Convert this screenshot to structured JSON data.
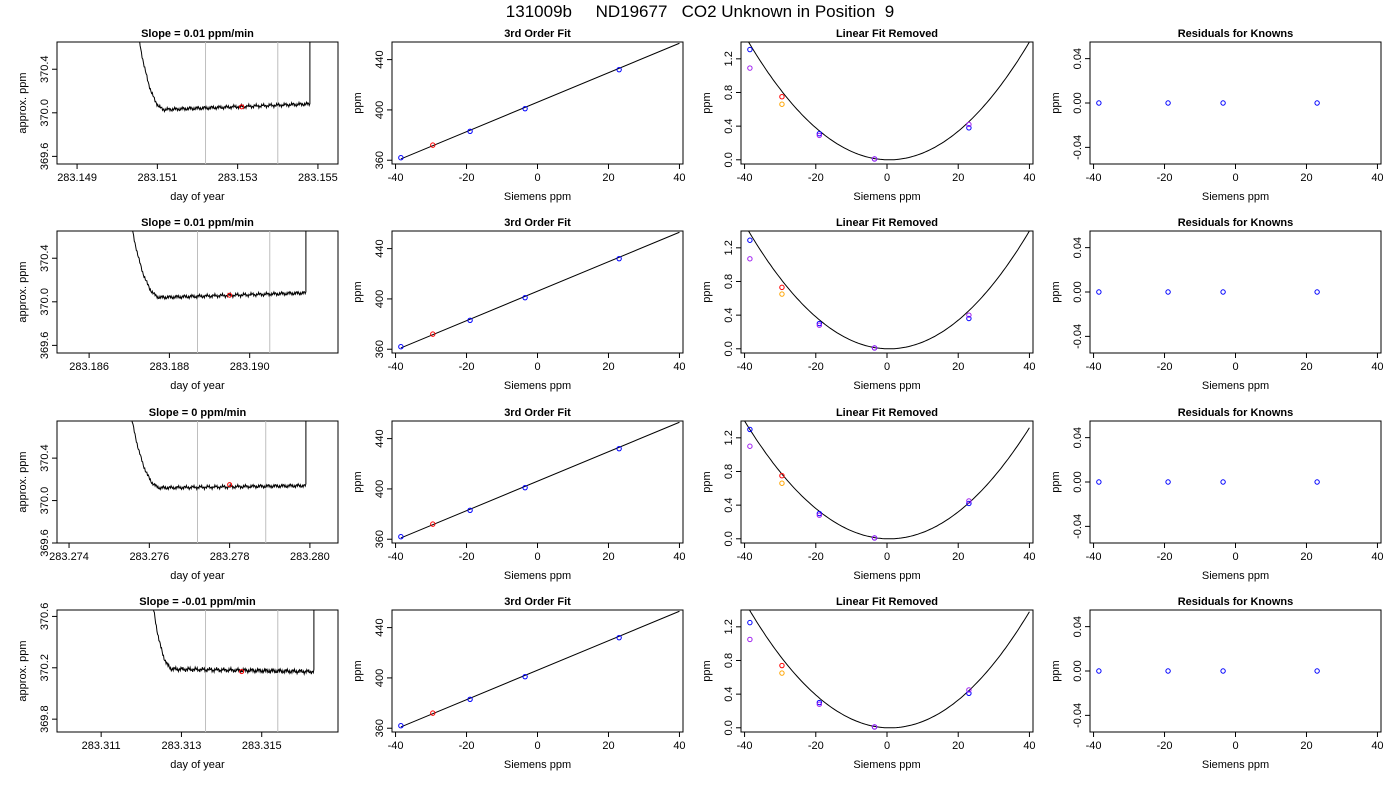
{
  "title": "131009b     ND19677   CO2 Unknown in Position  9",
  "colors": {
    "line": "#000000",
    "highlight": "#ff0000",
    "orange": "#ffa500",
    "blue": "#0000ff",
    "magenta": "#a020f0",
    "cursor": "#bebebe"
  },
  "chart_data": [
    {
      "type": "line",
      "panel": "trace",
      "row": 1,
      "title": "Slope =  0.01  ppm/min",
      "xlabel": "day of year",
      "ylabel": "approx. ppm",
      "xlim": [
        283.1485,
        283.1555
      ],
      "ylim": [
        369.53,
        370.65
      ],
      "xticks": [
        283.149,
        283.151,
        283.153,
        283.155
      ],
      "xtick_labels": [
        "283.149",
        "283.151",
        "283.153",
        "283.155"
      ],
      "yticks": [
        369.6,
        370.0,
        370.4
      ],
      "ytick_labels": [
        "369.6",
        "370.0",
        "370.4"
      ],
      "vlines": [
        283.1522,
        283.154
      ],
      "highlight_point": {
        "x": 283.1531,
        "y": 370.055
      },
      "trace": {
        "x_start": 283.1504,
        "x_plateau": 283.1512,
        "x_end": 283.1547,
        "x_rise_end": 283.1548,
        "level": 370.03,
        "end_level": 370.08
      }
    },
    {
      "type": "line",
      "panel": "trace",
      "row": 2,
      "title": "Slope =  0.01  ppm/min",
      "xlabel": "day of year",
      "ylabel": "approx. ppm",
      "xlim": [
        283.1852,
        283.1922
      ],
      "ylim": [
        369.53,
        370.65
      ],
      "xticks": [
        283.186,
        283.188,
        283.19
      ],
      "xtick_labels": [
        "283.186",
        "283.188",
        "283.190"
      ],
      "yticks": [
        369.6,
        370.0,
        370.4
      ],
      "ytick_labels": [
        "369.6",
        "370.0",
        "370.4"
      ],
      "vlines": [
        283.1887,
        283.1905
      ],
      "highlight_point": {
        "x": 283.1895,
        "y": 370.06
      },
      "trace": {
        "x_start": 283.1869,
        "x_plateau": 283.1878,
        "x_end": 283.1913,
        "x_rise_end": 283.1914,
        "level": 370.04,
        "end_level": 370.08
      }
    },
    {
      "type": "line",
      "panel": "trace",
      "row": 3,
      "title": "Slope =  0  ppm/min",
      "xlabel": "day of year",
      "ylabel": "approx. ppm",
      "xlim": [
        283.2737,
        283.2807
      ],
      "ylim": [
        369.6,
        370.75
      ],
      "xticks": [
        283.274,
        283.276,
        283.278,
        283.28
      ],
      "xtick_labels": [
        "283.274",
        "283.276",
        "283.278",
        "283.280"
      ],
      "yticks": [
        369.6,
        370.0,
        370.4
      ],
      "ytick_labels": [
        "369.6",
        "370.0",
        "370.4"
      ],
      "vlines": [
        283.2772,
        283.2789
      ],
      "highlight_point": {
        "x": 283.278,
        "y": 370.15
      },
      "trace": {
        "x_start": 283.2754,
        "x_plateau": 283.2763,
        "x_end": 283.2798,
        "x_rise_end": 283.2799,
        "level": 370.12,
        "end_level": 370.14
      }
    },
    {
      "type": "line",
      "panel": "trace",
      "row": 4,
      "title": "Slope =  -0.01  ppm/min",
      "xlabel": "day of year",
      "ylabel": "approx. ppm",
      "xlim": [
        283.3099,
        283.3169
      ],
      "ylim": [
        369.7,
        370.65
      ],
      "xticks": [
        283.311,
        283.313,
        283.315
      ],
      "xtick_labels": [
        "283.311",
        "283.313",
        "283.315"
      ],
      "yticks": [
        369.8,
        370.2,
        370.6
      ],
      "ytick_labels": [
        "369.8",
        "370.2",
        "370.6"
      ],
      "vlines": [
        283.3136,
        283.3154
      ],
      "highlight_point": {
        "x": 283.3145,
        "y": 370.17
      },
      "trace": {
        "x_start": 283.3121,
        "x_plateau": 283.3128,
        "x_end": 283.3162,
        "x_rise_end": 283.3163,
        "level": 370.19,
        "end_level": 370.17
      }
    },
    {
      "type": "scatter",
      "panel": "fit",
      "row": 1,
      "title": "3rd Order Fit",
      "xlabel": "Siemens ppm",
      "ylabel": "ppm",
      "xlim": [
        -41,
        41
      ],
      "ylim": [
        357,
        454
      ],
      "xticks": [
        -40,
        -20,
        0,
        20,
        40
      ],
      "xtick_labels": [
        "-40",
        "-20",
        "0",
        "20",
        "40"
      ],
      "yticks": [
        360,
        400,
        440
      ],
      "ytick_labels": [
        "360",
        "400",
        "440"
      ],
      "line": {
        "x": [
          -38.5,
          40
        ],
        "y": [
          361,
          453
        ]
      },
      "points": [
        {
          "x": -38.5,
          "y": 362,
          "color": "blue"
        },
        {
          "x": -29.5,
          "y": 372,
          "color": "red"
        },
        {
          "x": -19,
          "y": 383,
          "color": "blue"
        },
        {
          "x": -3.5,
          "y": 401,
          "color": "blue"
        },
        {
          "x": 23,
          "y": 432,
          "color": "blue"
        }
      ]
    },
    {
      "type": "scatter",
      "panel": "fit",
      "row": 2,
      "title": "3rd Order Fit",
      "xlabel": "Siemens ppm",
      "ylabel": "ppm",
      "xlim": [
        -41,
        41
      ],
      "ylim": [
        357,
        454
      ],
      "xticks": [
        -40,
        -20,
        0,
        20,
        40
      ],
      "xtick_labels": [
        "-40",
        "-20",
        "0",
        "20",
        "40"
      ],
      "yticks": [
        360,
        400,
        440
      ],
      "ytick_labels": [
        "360",
        "400",
        "440"
      ],
      "line": {
        "x": [
          -38.5,
          40
        ],
        "y": [
          361,
          453
        ]
      },
      "points": [
        {
          "x": -38.5,
          "y": 362,
          "color": "blue"
        },
        {
          "x": -29.5,
          "y": 372,
          "color": "red"
        },
        {
          "x": -19,
          "y": 383,
          "color": "blue"
        },
        {
          "x": -3.5,
          "y": 401,
          "color": "blue"
        },
        {
          "x": 23,
          "y": 432,
          "color": "blue"
        }
      ]
    },
    {
      "type": "scatter",
      "panel": "fit",
      "row": 3,
      "title": "3rd Order Fit",
      "xlabel": "Siemens ppm",
      "ylabel": "ppm",
      "xlim": [
        -41,
        41
      ],
      "ylim": [
        357,
        454
      ],
      "xticks": [
        -40,
        -20,
        0,
        20,
        40
      ],
      "xtick_labels": [
        "-40",
        "-20",
        "0",
        "20",
        "40"
      ],
      "yticks": [
        360,
        400,
        440
      ],
      "ytick_labels": [
        "360",
        "400",
        "440"
      ],
      "line": {
        "x": [
          -38.5,
          40
        ],
        "y": [
          361,
          453
        ]
      },
      "points": [
        {
          "x": -38.5,
          "y": 362,
          "color": "blue"
        },
        {
          "x": -29.5,
          "y": 372,
          "color": "red"
        },
        {
          "x": -19,
          "y": 383,
          "color": "blue"
        },
        {
          "x": -3.5,
          "y": 401,
          "color": "blue"
        },
        {
          "x": 23,
          "y": 432,
          "color": "blue"
        }
      ]
    },
    {
      "type": "scatter",
      "panel": "fit",
      "row": 4,
      "title": "3rd Order Fit",
      "xlabel": "Siemens ppm",
      "ylabel": "ppm",
      "xlim": [
        -41,
        41
      ],
      "ylim": [
        357,
        454
      ],
      "xticks": [
        -40,
        -20,
        0,
        20,
        40
      ],
      "xtick_labels": [
        "-40",
        "-20",
        "0",
        "20",
        "40"
      ],
      "yticks": [
        360,
        400,
        440
      ],
      "ytick_labels": [
        "360",
        "400",
        "440"
      ],
      "line": {
        "x": [
          -38.5,
          40
        ],
        "y": [
          361,
          453
        ]
      },
      "points": [
        {
          "x": -38.5,
          "y": 362,
          "color": "blue"
        },
        {
          "x": -29.5,
          "y": 372,
          "color": "red"
        },
        {
          "x": -19,
          "y": 383,
          "color": "blue"
        },
        {
          "x": -3.5,
          "y": 401,
          "color": "blue"
        },
        {
          "x": 23,
          "y": 432,
          "color": "blue"
        }
      ]
    },
    {
      "type": "scatter",
      "panel": "linfit",
      "row": 1,
      "title": "Linear Fit Removed",
      "xlabel": "Siemens ppm",
      "ylabel": "ppm",
      "xlim": [
        -41,
        41
      ],
      "ylim": [
        -0.05,
        1.4
      ],
      "xticks": [
        -40,
        -20,
        0,
        20,
        40
      ],
      "xtick_labels": [
        "-40",
        "-20",
        "0",
        "20",
        "40"
      ],
      "yticks": [
        0,
        0.4,
        0.8,
        1.2
      ],
      "ytick_labels": [
        "0.0",
        "0.4",
        "0.8",
        "1.2"
      ],
      "curve": {
        "vertex_x": 0,
        "vertex_y": 0,
        "a": 0.0009,
        "b": 0.0001,
        "x_from": -40,
        "x_to": 40
      },
      "points": [
        {
          "x": -38.5,
          "y": 1.31,
          "color": "blue"
        },
        {
          "x": -38.5,
          "y": 1.09,
          "color": "magenta"
        },
        {
          "x": -29.5,
          "y": 0.75,
          "color": "red"
        },
        {
          "x": -29.5,
          "y": 0.66,
          "color": "orange"
        },
        {
          "x": -19,
          "y": 0.31,
          "color": "blue"
        },
        {
          "x": -19,
          "y": 0.29,
          "color": "magenta"
        },
        {
          "x": -3.5,
          "y": 0.01,
          "color": "blue"
        },
        {
          "x": -3.5,
          "y": 0.01,
          "color": "magenta"
        },
        {
          "x": 23,
          "y": 0.38,
          "color": "blue"
        },
        {
          "x": 23,
          "y": 0.42,
          "color": "magenta"
        }
      ]
    },
    {
      "type": "scatter",
      "panel": "linfit",
      "row": 2,
      "title": "Linear Fit Removed",
      "xlabel": "Siemens ppm",
      "ylabel": "ppm",
      "xlim": [
        -41,
        41
      ],
      "ylim": [
        -0.05,
        1.4
      ],
      "xticks": [
        -40,
        -20,
        0,
        20,
        40
      ],
      "xtick_labels": [
        "-40",
        "-20",
        "0",
        "20",
        "40"
      ],
      "yticks": [
        0,
        0.4,
        0.8,
        1.2
      ],
      "ytick_labels": [
        "0.0",
        "0.4",
        "0.8",
        "1.2"
      ],
      "curve": {
        "vertex_x": 0,
        "vertex_y": 0,
        "a": 0.0009,
        "b": 0.0001,
        "x_from": -40,
        "x_to": 40
      },
      "points": [
        {
          "x": -38.5,
          "y": 1.29,
          "color": "blue"
        },
        {
          "x": -38.5,
          "y": 1.07,
          "color": "magenta"
        },
        {
          "x": -29.5,
          "y": 0.73,
          "color": "red"
        },
        {
          "x": -29.5,
          "y": 0.65,
          "color": "orange"
        },
        {
          "x": -19,
          "y": 0.3,
          "color": "blue"
        },
        {
          "x": -19,
          "y": 0.28,
          "color": "magenta"
        },
        {
          "x": -3.5,
          "y": 0.01,
          "color": "blue"
        },
        {
          "x": -3.5,
          "y": 0.01,
          "color": "magenta"
        },
        {
          "x": 23,
          "y": 0.36,
          "color": "blue"
        },
        {
          "x": 23,
          "y": 0.4,
          "color": "magenta"
        }
      ]
    },
    {
      "type": "scatter",
      "panel": "linfit",
      "row": 3,
      "title": "Linear Fit Removed",
      "xlabel": "Siemens ppm",
      "ylabel": "ppm",
      "xlim": [
        -41,
        41
      ],
      "ylim": [
        -0.05,
        1.4
      ],
      "xticks": [
        -40,
        -20,
        0,
        20,
        40
      ],
      "xtick_labels": [
        "-40",
        "-20",
        "0",
        "20",
        "40"
      ],
      "yticks": [
        0,
        0.4,
        0.8,
        1.2
      ],
      "ytick_labels": [
        "0.0",
        "0.4",
        "0.8",
        "1.2"
      ],
      "curve": {
        "vertex_x": 0,
        "vertex_y": 0,
        "a": 0.00085,
        "b": 0.0001,
        "x_from": -40,
        "x_to": 40
      },
      "points": [
        {
          "x": -38.5,
          "y": 1.3,
          "color": "blue"
        },
        {
          "x": -38.5,
          "y": 1.1,
          "color": "magenta"
        },
        {
          "x": -29.5,
          "y": 0.75,
          "color": "red"
        },
        {
          "x": -29.5,
          "y": 0.66,
          "color": "orange"
        },
        {
          "x": -19,
          "y": 0.3,
          "color": "blue"
        },
        {
          "x": -19,
          "y": 0.28,
          "color": "magenta"
        },
        {
          "x": -3.5,
          "y": 0.01,
          "color": "blue"
        },
        {
          "x": -3.5,
          "y": 0.01,
          "color": "magenta"
        },
        {
          "x": 23,
          "y": 0.42,
          "color": "blue"
        },
        {
          "x": 23,
          "y": 0.45,
          "color": "magenta"
        }
      ]
    },
    {
      "type": "scatter",
      "panel": "linfit",
      "row": 4,
      "title": "Linear Fit Removed",
      "xlabel": "Siemens ppm",
      "ylabel": "ppm",
      "xlim": [
        -41,
        41
      ],
      "ylim": [
        -0.05,
        1.4
      ],
      "xticks": [
        -40,
        -20,
        0,
        20,
        40
      ],
      "xtick_labels": [
        "-40",
        "-20",
        "0",
        "20",
        "40"
      ],
      "yticks": [
        0,
        0.4,
        0.8,
        1.2
      ],
      "ytick_labels": [
        "0.0",
        "0.4",
        "0.8",
        "1.2"
      ],
      "curve": {
        "vertex_x": 0,
        "vertex_y": 0,
        "a": 0.0009,
        "b": 0.00015,
        "x_from": -40,
        "x_to": 40
      },
      "points": [
        {
          "x": -38.5,
          "y": 1.25,
          "color": "blue"
        },
        {
          "x": -38.5,
          "y": 1.05,
          "color": "magenta"
        },
        {
          "x": -29.5,
          "y": 0.74,
          "color": "red"
        },
        {
          "x": -29.5,
          "y": 0.65,
          "color": "orange"
        },
        {
          "x": -19,
          "y": 0.3,
          "color": "blue"
        },
        {
          "x": -19,
          "y": 0.28,
          "color": "magenta"
        },
        {
          "x": -3.5,
          "y": 0.01,
          "color": "blue"
        },
        {
          "x": -3.5,
          "y": 0.01,
          "color": "magenta"
        },
        {
          "x": 23,
          "y": 0.41,
          "color": "blue"
        },
        {
          "x": 23,
          "y": 0.45,
          "color": "magenta"
        }
      ]
    },
    {
      "type": "scatter",
      "panel": "resid",
      "row": 1,
      "title": "Residuals for Knowns",
      "xlabel": "Siemens ppm",
      "ylabel": "ppm",
      "xlim": [
        -41,
        41
      ],
      "ylim": [
        -0.055,
        0.055
      ],
      "xticks": [
        -40,
        -20,
        0,
        20,
        40
      ],
      "xtick_labels": [
        "-40",
        "-20",
        "0",
        "20",
        "40"
      ],
      "yticks": [
        -0.04,
        0,
        0.04
      ],
      "ytick_labels": [
        "-0.04",
        "0.00",
        "0.04"
      ],
      "points": [
        {
          "x": -38.5,
          "y": 0,
          "color": "blue"
        },
        {
          "x": -19,
          "y": 0,
          "color": "blue"
        },
        {
          "x": -3.5,
          "y": 0,
          "color": "blue"
        },
        {
          "x": 23,
          "y": 0,
          "color": "blue"
        }
      ]
    },
    {
      "type": "scatter",
      "panel": "resid",
      "row": 2,
      "title": "Residuals for Knowns",
      "xlabel": "Siemens ppm",
      "ylabel": "ppm",
      "xlim": [
        -41,
        41
      ],
      "ylim": [
        -0.055,
        0.055
      ],
      "xticks": [
        -40,
        -20,
        0,
        20,
        40
      ],
      "xtick_labels": [
        "-40",
        "-20",
        "0",
        "20",
        "40"
      ],
      "yticks": [
        -0.04,
        0,
        0.04
      ],
      "ytick_labels": [
        "-0.04",
        "0.00",
        "0.04"
      ],
      "points": [
        {
          "x": -38.5,
          "y": 0,
          "color": "blue"
        },
        {
          "x": -19,
          "y": 0,
          "color": "blue"
        },
        {
          "x": -3.5,
          "y": 0,
          "color": "blue"
        },
        {
          "x": 23,
          "y": 0,
          "color": "blue"
        }
      ]
    },
    {
      "type": "scatter",
      "panel": "resid",
      "row": 3,
      "title": "Residuals for Knowns",
      "xlabel": "Siemens ppm",
      "ylabel": "ppm",
      "xlim": [
        -41,
        41
      ],
      "ylim": [
        -0.055,
        0.055
      ],
      "xticks": [
        -40,
        -20,
        0,
        20,
        40
      ],
      "xtick_labels": [
        "-40",
        "-20",
        "0",
        "20",
        "40"
      ],
      "yticks": [
        -0.04,
        0,
        0.04
      ],
      "ytick_labels": [
        "-0.04",
        "0.00",
        "0.04"
      ],
      "points": [
        {
          "x": -38.5,
          "y": 0,
          "color": "blue"
        },
        {
          "x": -19,
          "y": 0,
          "color": "blue"
        },
        {
          "x": -3.5,
          "y": 0,
          "color": "blue"
        },
        {
          "x": 23,
          "y": 0,
          "color": "blue"
        }
      ]
    },
    {
      "type": "scatter",
      "panel": "resid",
      "row": 4,
      "title": "Residuals for Knowns",
      "xlabel": "Siemens ppm",
      "ylabel": "ppm",
      "xlim": [
        -41,
        41
      ],
      "ylim": [
        -0.055,
        0.055
      ],
      "xticks": [
        -40,
        -20,
        0,
        20,
        40
      ],
      "xtick_labels": [
        "-40",
        "-20",
        "0",
        "20",
        "40"
      ],
      "yticks": [
        -0.04,
        0,
        0.04
      ],
      "ytick_labels": [
        "-0.04",
        "0.00",
        "0.04"
      ],
      "points": [
        {
          "x": -38.5,
          "y": 0,
          "color": "blue"
        },
        {
          "x": -19,
          "y": 0,
          "color": "blue"
        },
        {
          "x": -3.5,
          "y": 0,
          "color": "blue"
        },
        {
          "x": 23,
          "y": 0,
          "color": "blue"
        }
      ]
    }
  ]
}
